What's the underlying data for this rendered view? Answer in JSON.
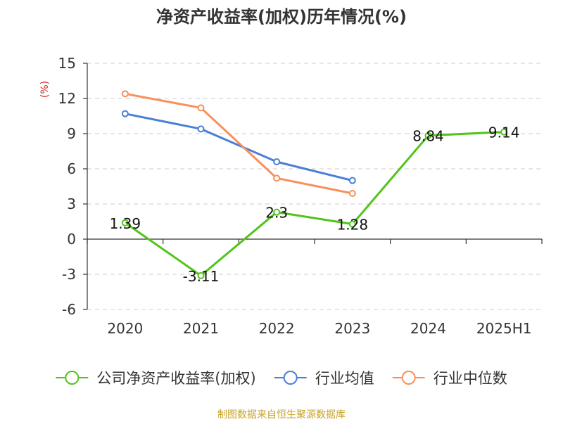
{
  "chart_data": {
    "type": "line",
    "title": "净资产收益率(加权)历年情况(%)",
    "ylabel": "(%)",
    "categories": [
      "2020",
      "2021",
      "2022",
      "2023",
      "2024",
      "2025H1"
    ],
    "ylim": [
      -6,
      15
    ],
    "yticks": [
      15,
      12,
      9,
      6,
      3,
      0,
      -3,
      -6
    ],
    "grid": true,
    "legend_position": "bottom",
    "series": [
      {
        "name": "公司净资产收益率(加权)",
        "color": "#52c41a",
        "values": [
          1.39,
          -3.11,
          2.3,
          1.28,
          8.84,
          9.14
        ],
        "labels": [
          "1.39",
          "-3.11",
          "2.3",
          "1.28",
          "8.84",
          "9.14"
        ]
      },
      {
        "name": "行业均值",
        "color": "#4a7fd6",
        "values": [
          10.7,
          9.4,
          6.6,
          5.0,
          null,
          null
        ]
      },
      {
        "name": "行业中位数",
        "color": "#f98f5a",
        "values": [
          12.4,
          11.2,
          5.2,
          3.9,
          null,
          null
        ]
      }
    ],
    "source": "制图数据来自恒生聚源数据库"
  },
  "colors": {
    "ylabel": "#d9252b",
    "source": "#c9a227"
  }
}
